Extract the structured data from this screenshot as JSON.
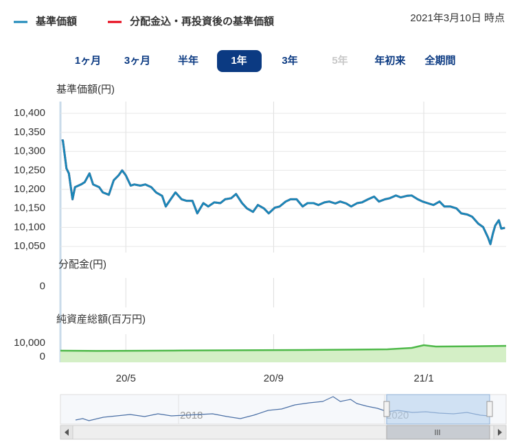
{
  "ui": {
    "as_of": "2021年3月10日 時点",
    "tabs": [
      "1ヶ月",
      "3ヶ月",
      "半年",
      "1年",
      "3年",
      "5年",
      "年初来",
      "全期間"
    ],
    "selected_tab": 3,
    "disabled_tab": 5
  },
  "chart_data": [
    {
      "type": "line",
      "ylabel": "基準価額(円)",
      "xlim": [
        0,
        368
      ],
      "ylim": [
        10034,
        10431
      ],
      "yticks": [
        {
          "value": 10400,
          "label": "10,400"
        },
        {
          "value": 10350,
          "label": "10,350"
        },
        {
          "value": 10300,
          "label": "10,300"
        },
        {
          "value": 10250,
          "label": "10,250"
        },
        {
          "value": 10200,
          "label": "10,200"
        },
        {
          "value": 10150,
          "label": "10,150"
        },
        {
          "value": 10100,
          "label": "10,100"
        },
        {
          "value": 10050,
          "label": "10,050"
        }
      ],
      "grid": true,
      "x": [
        1,
        2,
        5,
        7,
        10,
        12,
        17,
        20,
        24,
        27,
        32,
        35,
        40,
        44,
        48,
        51,
        54,
        58,
        61,
        66,
        70,
        75,
        79,
        84,
        87,
        91,
        95,
        100,
        104,
        109,
        113,
        118,
        122,
        127,
        132,
        136,
        141,
        145,
        150,
        154,
        159,
        163,
        168,
        172,
        177,
        181,
        186,
        190,
        195,
        200,
        204,
        209,
        213,
        218,
        222,
        227,
        231,
        236,
        240,
        245,
        249,
        254,
        259,
        263,
        268,
        272,
        277,
        281,
        286,
        290,
        295,
        299,
        304,
        308,
        313,
        317,
        322,
        327,
        331,
        336,
        340,
        345,
        349,
        353,
        355,
        357,
        359,
        362,
        364,
        367
      ],
      "series": [
        {
          "name": "分配金込・再投資後の基準価額",
          "color": "#e60012",
          "values": [
            10328,
            10329,
            10255,
            10242,
            10174,
            10206,
            10213,
            10219,
            10242,
            10213,
            10206,
            10192,
            10186,
            10224,
            10237,
            10250,
            10237,
            10210,
            10213,
            10210,
            10213,
            10206,
            10192,
            10183,
            10155,
            10174,
            10192,
            10174,
            10170,
            10170,
            10137,
            10164,
            10155,
            10166,
            10164,
            10174,
            10177,
            10188,
            10164,
            10150,
            10141,
            10159,
            10150,
            10137,
            10152,
            10155,
            10168,
            10174,
            10174,
            10155,
            10164,
            10164,
            10159,
            10166,
            10168,
            10163,
            10168,
            10163,
            10155,
            10164,
            10166,
            10174,
            10181,
            10168,
            10174,
            10177,
            10184,
            10179,
            10183,
            10184,
            10174,
            10168,
            10163,
            10159,
            10168,
            10155,
            10155,
            10150,
            10137,
            10134,
            10128,
            10110,
            10101,
            10074,
            10056,
            10083,
            10105,
            10119,
            10097,
            10099
          ]
        },
        {
          "name": "基準価額",
          "color": "#1a87b8",
          "values": [
            10328,
            10329,
            10255,
            10242,
            10174,
            10206,
            10213,
            10219,
            10242,
            10213,
            10206,
            10192,
            10186,
            10224,
            10237,
            10250,
            10237,
            10210,
            10213,
            10210,
            10213,
            10206,
            10192,
            10183,
            10155,
            10174,
            10192,
            10174,
            10170,
            10170,
            10137,
            10164,
            10155,
            10166,
            10164,
            10174,
            10177,
            10188,
            10164,
            10150,
            10141,
            10159,
            10150,
            10137,
            10152,
            10155,
            10168,
            10174,
            10174,
            10155,
            10164,
            10164,
            10159,
            10166,
            10168,
            10163,
            10168,
            10163,
            10155,
            10164,
            10166,
            10174,
            10181,
            10168,
            10174,
            10177,
            10184,
            10179,
            10183,
            10184,
            10174,
            10168,
            10163,
            10159,
            10168,
            10155,
            10155,
            10150,
            10137,
            10134,
            10128,
            10110,
            10101,
            10074,
            10056,
            10083,
            10105,
            10119,
            10097,
            10099
          ]
        }
      ]
    },
    {
      "type": "line",
      "ylabel": "分配金(円)",
      "ylim": [
        -1.2,
        0.5
      ],
      "yticks": [
        0
      ]
    },
    {
      "type": "area",
      "ylabel": "純資産総額(百万円)",
      "xlim": [
        0,
        368
      ],
      "ylim": [
        -4000,
        16500
      ],
      "yticks": [
        {
          "value": 10000,
          "label": "10,000"
        },
        0
      ],
      "xticks": [
        {
          "value": 54,
          "label": "20/5"
        },
        {
          "value": 176,
          "label": "20/9"
        },
        {
          "value": 300,
          "label": "21/1"
        }
      ],
      "x": [
        0,
        30,
        100,
        200,
        270,
        290,
        300,
        310,
        340,
        368
      ],
      "series": [
        {
          "color": "#4db848",
          "values": [
            4500,
            4300,
            4600,
            5000,
            5500,
            6500,
            8500,
            7500,
            7700,
            8000
          ]
        }
      ]
    },
    {
      "type": "line",
      "xlim": [
        2016.853,
        2021.18
      ],
      "ylim": [
        8780,
        10500
      ],
      "xticks": [
        {
          "value": 2018,
          "label": "2018"
        },
        {
          "value": 2020,
          "label": "2020"
        }
      ],
      "x": [
        2017.0,
        2017.07,
        2017.13,
        2017.27,
        2017.4,
        2017.53,
        2017.67,
        2017.8,
        2017.93,
        2018.07,
        2018.2,
        2018.33,
        2018.47,
        2018.6,
        2018.73,
        2018.87,
        2019.0,
        2019.13,
        2019.27,
        2019.4,
        2019.5,
        2019.57,
        2019.67,
        2019.73,
        2019.83,
        2019.93,
        2020.03,
        2020.13,
        2020.27,
        2020.4,
        2020.53,
        2020.67,
        2020.8,
        2020.93,
        2021.01
      ],
      "series": [
        {
          "color": "#4a6fa5",
          "values": [
            9020,
            9100,
            8980,
            9180,
            9260,
            9340,
            9220,
            9380,
            9260,
            9300,
            9340,
            9380,
            9220,
            9100,
            9300,
            9580,
            9660,
            9900,
            10020,
            10100,
            10380,
            10100,
            10220,
            9980,
            9820,
            9700,
            9500,
            9580,
            9460,
            9500,
            9420,
            9380,
            9460,
            9300,
            9260
          ]
        }
      ]
    }
  ]
}
